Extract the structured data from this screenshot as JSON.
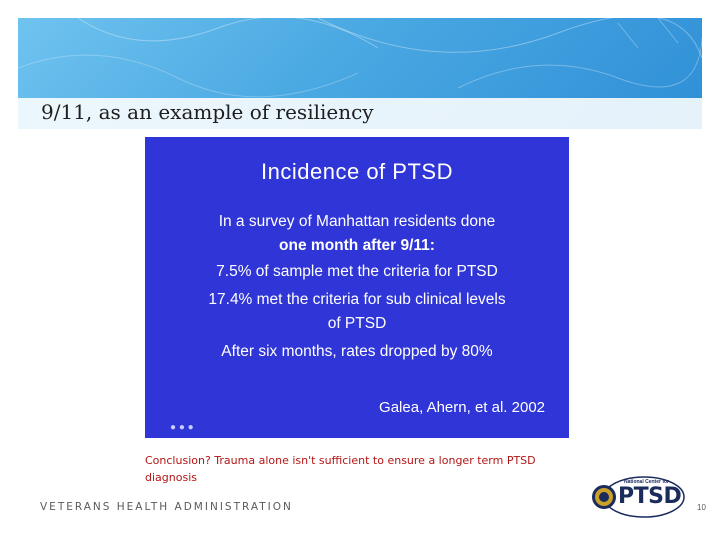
{
  "header": {
    "title": "9/11, as an example of resiliency"
  },
  "slide_image": {
    "title": "Incidence of PTSD",
    "lines": [
      "In a survey of Manhattan residents done",
      "one month after 9/11:",
      "7.5% of sample met the criteria for PTSD",
      "17.4% met the criteria for sub clinical levels",
      "of PTSD",
      "After six months, rates dropped by 80%"
    ],
    "citation": "Galea, Ahern, et al. 2002"
  },
  "caption": "Conclusion? Trauma alone isn't sufficient to ensure a longer term PTSD diagnosis",
  "footer": {
    "org": "VETERANS HEALTH ADMINISTRATION",
    "page_number": "10"
  },
  "logo": {
    "small_text": "National Center for",
    "main_text": "PTSD"
  },
  "colors": {
    "slide_bg": "#2f35d6",
    "caption": "#b31515",
    "header_blue": "#4aa8e2"
  }
}
